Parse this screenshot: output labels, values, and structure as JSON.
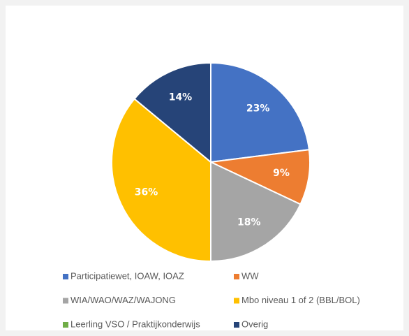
{
  "chart_data": {
    "type": "pie",
    "categories": [
      "Participatiewet, IOAW, IOAZ",
      "WW",
      "WIA/WAO/WAZ/WAJONG",
      "Mbo niveau 1 of 2 (BBL/BOL)",
      "Leerling VSO / Praktijkonderwijs",
      "Overig"
    ],
    "values": [
      23,
      9,
      18,
      36,
      0,
      14
    ],
    "value_labels": [
      "23%",
      "9%",
      "18%",
      "36%",
      null,
      "14%"
    ],
    "colors": [
      "#4472c4",
      "#ed7d31",
      "#a5a5a5",
      "#ffc000",
      "#70ad47",
      "#264478"
    ],
    "legend": "bottom"
  }
}
